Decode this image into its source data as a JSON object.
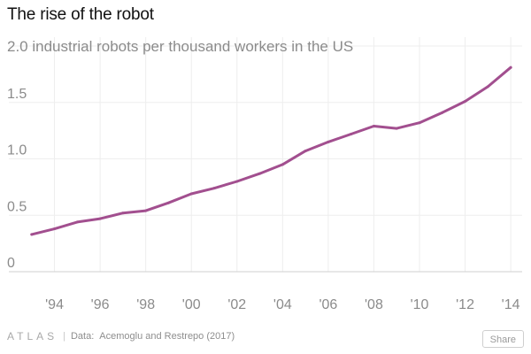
{
  "header": {
    "title": "The rise of the robot"
  },
  "footer": {
    "brand": "ATLAS",
    "separator": "|",
    "data_prefix": "Data:",
    "source": "Acemoglu and Restrepo (2017)",
    "share_label": "Share"
  },
  "colors": {
    "line": "#a24f8f",
    "grid": "#eeeeee",
    "tick": "#8b8b8b"
  },
  "chart_data": {
    "type": "line",
    "title": "The rise of the robot",
    "xlabel": "",
    "ylabel": "2.0 industrial robots per thousand workers in the US",
    "x": [
      1993,
      1994,
      1995,
      1996,
      1997,
      1998,
      1999,
      2000,
      2001,
      2002,
      2003,
      2004,
      2005,
      2006,
      2007,
      2008,
      2009,
      2010,
      2011,
      2012,
      2013,
      2014
    ],
    "series": [
      {
        "values": [
          0.33,
          0.38,
          0.44,
          0.47,
          0.52,
          0.54,
          0.61,
          0.69,
          0.74,
          0.8,
          0.87,
          0.95,
          1.07,
          1.15,
          1.22,
          1.29,
          1.27,
          1.32,
          1.41,
          1.51,
          1.64,
          1.81
        ]
      }
    ],
    "xlim": [
      1992,
      2014.5
    ],
    "ylim": [
      0,
      2.0
    ],
    "x_ticks": [
      {
        "value": 1994,
        "label": "'94"
      },
      {
        "value": 1996,
        "label": "'96"
      },
      {
        "value": 1998,
        "label": "'98"
      },
      {
        "value": 2000,
        "label": "'00"
      },
      {
        "value": 2002,
        "label": "'02"
      },
      {
        "value": 2004,
        "label": "'04"
      },
      {
        "value": 2006,
        "label": "'06"
      },
      {
        "value": 2008,
        "label": "'08"
      },
      {
        "value": 2010,
        "label": "'10"
      },
      {
        "value": 2012,
        "label": "'12"
      },
      {
        "value": 2014,
        "label": "'14"
      }
    ],
    "y_ticks": [
      {
        "value": 0,
        "label": "0"
      },
      {
        "value": 0.5,
        "label": "0.5"
      },
      {
        "value": 1.0,
        "label": "1.0"
      },
      {
        "value": 1.5,
        "label": "1.5"
      }
    ],
    "grid": true
  }
}
